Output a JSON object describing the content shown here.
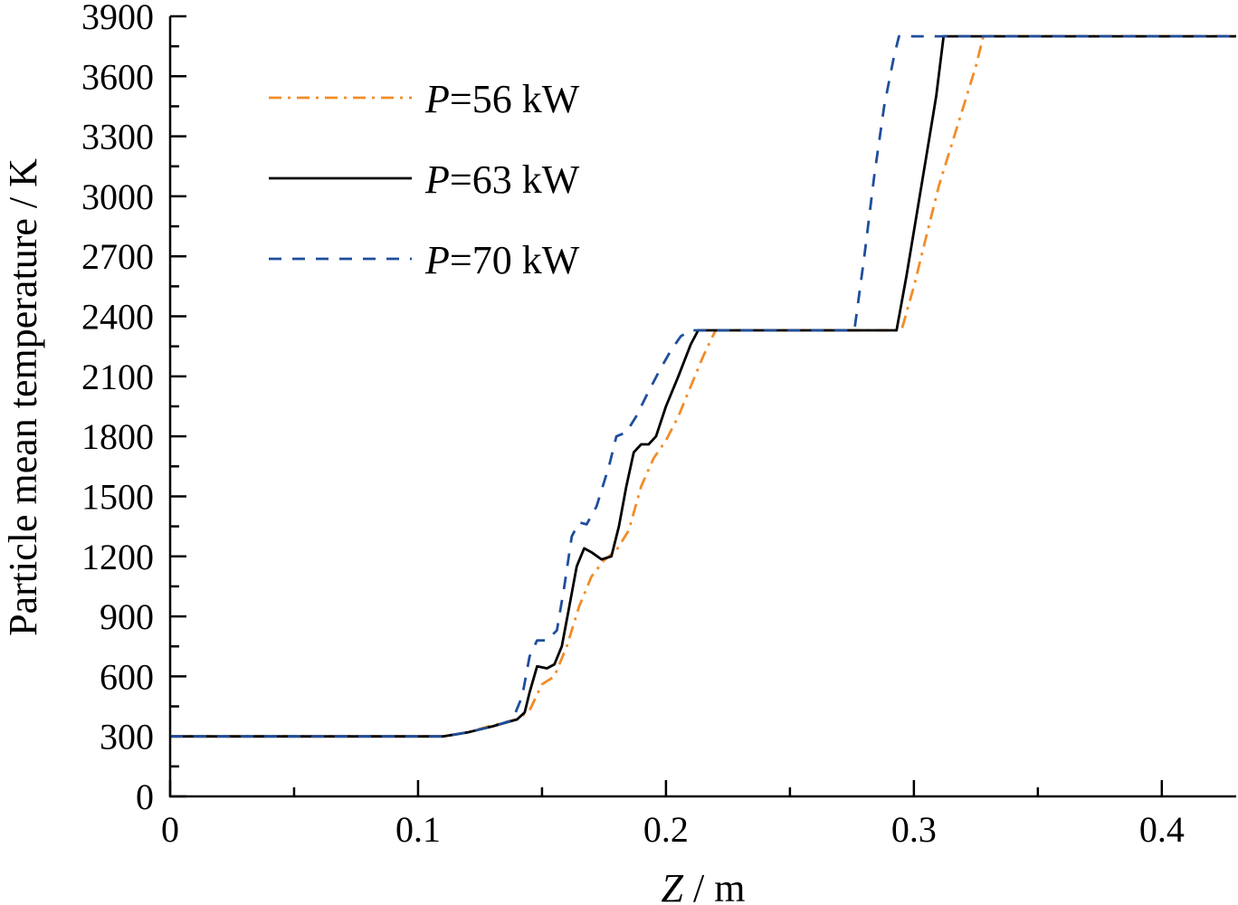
{
  "chart_data": {
    "type": "line",
    "xlabel": "Z / m",
    "ylabel": "Particle mean temperature / K",
    "xlim": [
      0,
      0.43
    ],
    "ylim": [
      0,
      3900
    ],
    "xticks": [
      0,
      0.1,
      0.2,
      0.3,
      0.4
    ],
    "xtick_labels": [
      "0",
      "0.1",
      "0.2",
      "0.3",
      "0.4"
    ],
    "yticks": [
      0,
      300,
      600,
      900,
      1200,
      1500,
      1800,
      2100,
      2400,
      2700,
      3000,
      3300,
      3600,
      3900
    ],
    "ytick_labels": [
      "0",
      "300",
      "600",
      "900",
      "1200",
      "1500",
      "1800",
      "2100",
      "2400",
      "2700",
      "3000",
      "3300",
      "3600",
      "3900"
    ],
    "grid": false,
    "legend_position": "top-left",
    "series": [
      {
        "name": "P=56 kW",
        "name_italic": "P",
        "name_rest": "=56 kW",
        "color": "#f28c28",
        "dash": "dashdot",
        "x": [
          0,
          0.11,
          0.12,
          0.13,
          0.14,
          0.145,
          0.15,
          0.155,
          0.16,
          0.165,
          0.17,
          0.175,
          0.18,
          0.185,
          0.19,
          0.195,
          0.2,
          0.205,
          0.21,
          0.215,
          0.22,
          0.23,
          0.295,
          0.3,
          0.305,
          0.31,
          0.315,
          0.32,
          0.325,
          0.328,
          0.43
        ],
        "y": [
          300,
          300,
          320,
          355,
          385,
          430,
          560,
          600,
          750,
          950,
          1100,
          1180,
          1230,
          1330,
          1550,
          1690,
          1780,
          1900,
          2050,
          2200,
          2330,
          2330,
          2330,
          2550,
          2800,
          3050,
          3250,
          3450,
          3650,
          3800,
          3800
        ]
      },
      {
        "name": "P=63 kW",
        "name_italic": "P",
        "name_rest": "=63 kW",
        "color": "#000000",
        "dash": "solid",
        "x": [
          0,
          0.11,
          0.12,
          0.13,
          0.14,
          0.143,
          0.145,
          0.148,
          0.152,
          0.155,
          0.158,
          0.161,
          0.164,
          0.167,
          0.17,
          0.174,
          0.178,
          0.181,
          0.184,
          0.187,
          0.19,
          0.193,
          0.196,
          0.2,
          0.205,
          0.21,
          0.213,
          0.23,
          0.293,
          0.297,
          0.301,
          0.305,
          0.309,
          0.312,
          0.43
        ],
        "y": [
          300,
          300,
          320,
          350,
          385,
          420,
          520,
          650,
          640,
          660,
          750,
          950,
          1150,
          1240,
          1220,
          1185,
          1200,
          1350,
          1550,
          1720,
          1760,
          1760,
          1800,
          1950,
          2100,
          2260,
          2330,
          2330,
          2330,
          2600,
          2900,
          3200,
          3500,
          3800,
          3800
        ]
      },
      {
        "name": "P=70 kW",
        "name_italic": "P",
        "name_rest": "=70 kW",
        "color": "#1f4e9c",
        "dash": "dashed",
        "x": [
          0,
          0.11,
          0.12,
          0.13,
          0.138,
          0.142,
          0.145,
          0.148,
          0.152,
          0.156,
          0.159,
          0.162,
          0.165,
          0.168,
          0.172,
          0.177,
          0.18,
          0.184,
          0.188,
          0.192,
          0.197,
          0.202,
          0.206,
          0.21,
          0.23,
          0.276,
          0.28,
          0.284,
          0.288,
          0.292,
          0.294,
          0.43
        ],
        "y": [
          300,
          300,
          320,
          350,
          380,
          500,
          700,
          780,
          780,
          830,
          1050,
          1300,
          1370,
          1360,
          1450,
          1650,
          1800,
          1820,
          1900,
          2000,
          2120,
          2230,
          2300,
          2330,
          2330,
          2330,
          2700,
          3100,
          3450,
          3700,
          3800,
          3800
        ]
      }
    ]
  }
}
